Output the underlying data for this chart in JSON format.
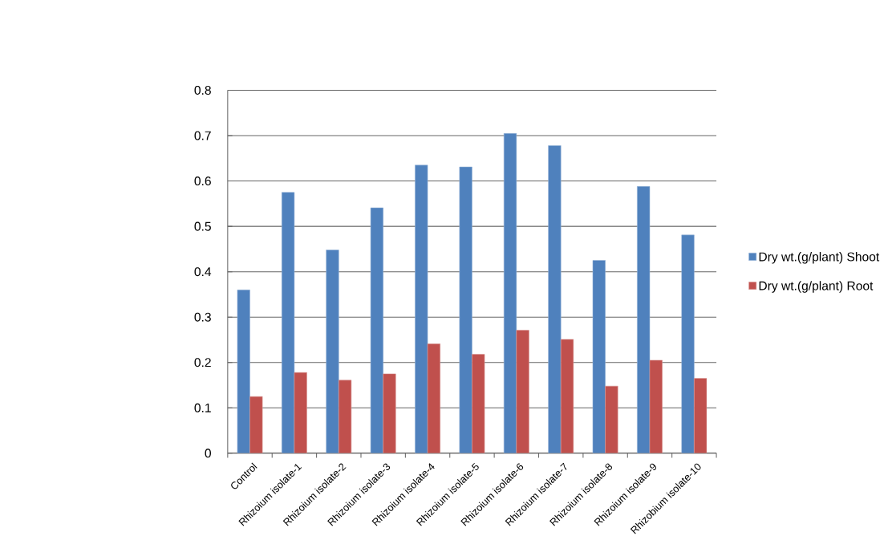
{
  "chart_data": {
    "type": "bar",
    "categories": [
      "Control",
      "Rhizoium isolate-1",
      "Rhizoium isolate-2",
      "Rhizoium isolate-3",
      "Rhizoium isolate-4",
      "Rhizoium isolate-5",
      "Rhizoium isolate-6",
      "Rhizoium isolate-7",
      "Rhizoium isolate-8",
      "Rhizoium isolate-9",
      "Rhizobium isolate-10"
    ],
    "series": [
      {
        "name": "Dry wt.(g/plant) Shoot",
        "color": "#4f81bd",
        "values": [
          0.36,
          0.575,
          0.448,
          0.541,
          0.635,
          0.631,
          0.705,
          0.678,
          0.425,
          0.588,
          0.481
        ]
      },
      {
        "name": "Dry wt.(g/plant) Root",
        "color": "#c0504d",
        "values": [
          0.125,
          0.178,
          0.161,
          0.175,
          0.241,
          0.218,
          0.271,
          0.251,
          0.148,
          0.205,
          0.165
        ]
      }
    ],
    "ylim": [
      0,
      0.8
    ],
    "yticks": [
      0,
      0.1,
      0.2,
      0.3,
      0.4,
      0.5,
      0.6,
      0.7,
      0.8
    ],
    "grid": "y",
    "legend": "right"
  }
}
